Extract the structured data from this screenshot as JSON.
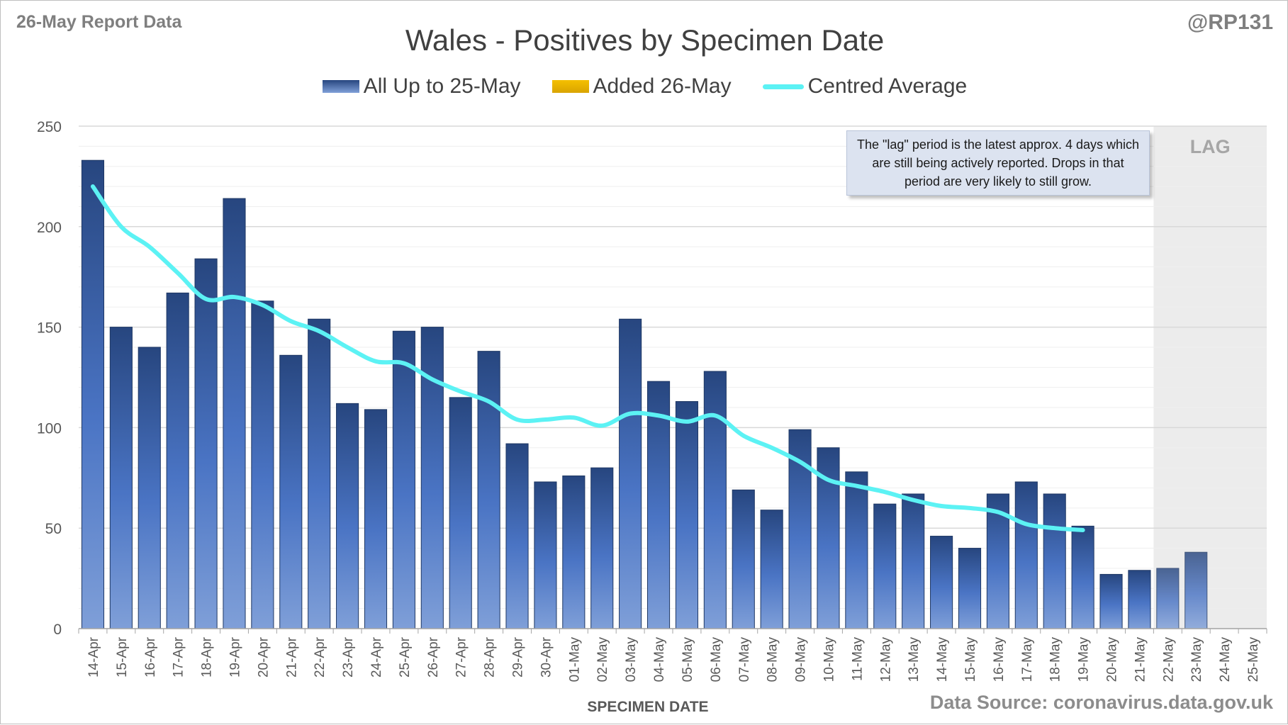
{
  "header": {
    "report_label": "26-May Report Data",
    "handle": "@RP131",
    "source": "Data Source: coronavirus.data.gov.uk"
  },
  "annotation": {
    "lag_label": "LAG",
    "note": "The \"lag\" period is the latest approx. 4 days which are still being actively reported.  Drops in that period are very likely to still grow."
  },
  "colors": {
    "bar_dark": "#27467f",
    "bar_light": "#7f9fd8",
    "added": "#d9a400",
    "average": "#5cf2f4",
    "lag_shade": "#ececec",
    "grid": "#d9d9d9",
    "text": "#595959"
  },
  "chart_data": {
    "type": "bar",
    "title": "Wales - Positives by Specimen Date",
    "xlabel": "SPECIMEN DATE",
    "ylabel": "",
    "ylim": [
      0,
      250
    ],
    "yticks": [
      0,
      50,
      100,
      150,
      200,
      250
    ],
    "grid": true,
    "legend_position": "top-center",
    "categories": [
      "14-Apr",
      "15-Apr",
      "16-Apr",
      "17-Apr",
      "18-Apr",
      "19-Apr",
      "20-Apr",
      "21-Apr",
      "22-Apr",
      "23-Apr",
      "24-Apr",
      "25-Apr",
      "26-Apr",
      "27-Apr",
      "28-Apr",
      "29-Apr",
      "30-Apr",
      "01-May",
      "02-May",
      "03-May",
      "04-May",
      "05-May",
      "06-May",
      "07-May",
      "08-May",
      "09-May",
      "10-May",
      "11-May",
      "12-May",
      "13-May",
      "14-May",
      "15-May",
      "16-May",
      "17-May",
      "18-May",
      "19-May",
      "20-May",
      "21-May",
      "22-May",
      "23-May",
      "24-May",
      "25-May"
    ],
    "series": [
      {
        "name": "All Up to 25-May",
        "type": "bar",
        "values": [
          233,
          150,
          140,
          167,
          184,
          214,
          163,
          136,
          154,
          112,
          109,
          148,
          150,
          115,
          138,
          92,
          73,
          76,
          80,
          154,
          123,
          113,
          128,
          69,
          59,
          99,
          90,
          78,
          62,
          67,
          46,
          40,
          67,
          73,
          67,
          51,
          27,
          29,
          30,
          38,
          0,
          0
        ]
      },
      {
        "name": "Added 26-May",
        "type": "bar",
        "values": [
          0,
          0,
          0,
          0,
          0,
          0,
          0,
          0,
          0,
          0,
          0,
          0,
          0,
          0,
          0,
          0,
          0,
          0,
          0,
          0,
          0,
          0,
          0,
          0,
          0,
          0,
          0,
          0,
          0,
          0,
          0,
          0,
          0,
          0,
          0,
          0,
          0,
          0,
          0,
          0,
          0,
          0
        ]
      },
      {
        "name": "Centred Average",
        "type": "line",
        "values": [
          220,
          200,
          190,
          177,
          164,
          165,
          161,
          153,
          148,
          140,
          133,
          132,
          124,
          118,
          113,
          104,
          104,
          105,
          101,
          107,
          106,
          103,
          106,
          96,
          90,
          83,
          74,
          71,
          68,
          64,
          61,
          60,
          58,
          52,
          50,
          49,
          null,
          null,
          null,
          null,
          null,
          null
        ]
      }
    ],
    "lag_start_category": "22-May",
    "lag_end_category": "25-May"
  }
}
